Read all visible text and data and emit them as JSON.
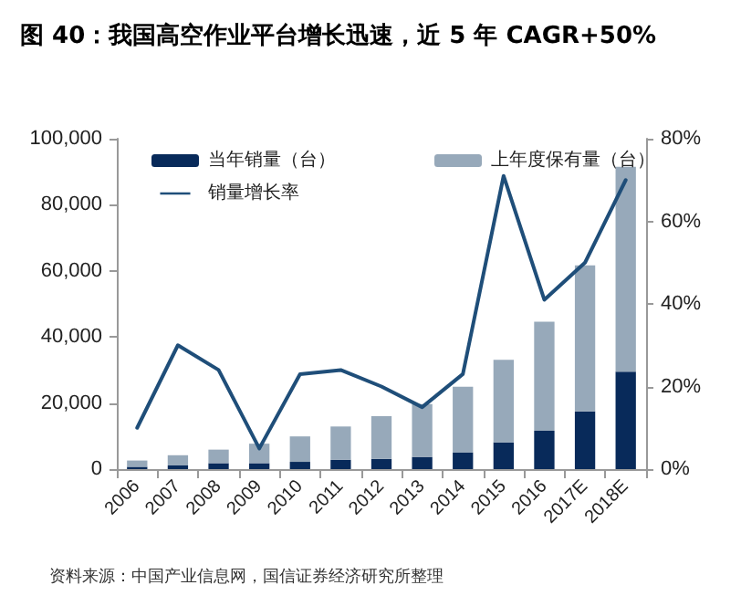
{
  "chart_data": {
    "type": "bar",
    "title": "图 40：我国高空作业平台增长迅速，近 5 年 CAGR+50%",
    "stacked": true,
    "categories": [
      "2006",
      "2007",
      "2008",
      "2009",
      "2010",
      "2011",
      "2012",
      "2013",
      "2014",
      "2015",
      "2016",
      "2017E",
      "2018E"
    ],
    "series": [
      {
        "name": "当年销量（台）",
        "color": "#082a5a",
        "values": [
          700,
          1100,
          1800,
          1800,
          2200,
          2800,
          3100,
          3700,
          5000,
          8100,
          11600,
          17500,
          29500
        ]
      },
      {
        "name": "上年度保有量（台）",
        "color": "#97a9ba",
        "values": [
          1900,
          3100,
          4100,
          5900,
          7700,
          10100,
          12900,
          16000,
          19900,
          25000,
          33000,
          44200,
          62000
        ]
      },
      {
        "name": "销量增长率",
        "type": "line",
        "axis": "y2",
        "color": "#1f4e79",
        "marker": "none",
        "values": [
          10,
          30,
          24,
          5,
          23,
          24,
          20,
          15,
          23,
          71,
          41,
          50,
          70
        ]
      }
    ],
    "ylim": [
      0,
      100000
    ],
    "yticks": [
      0,
      {
        "value": 20000,
        "label": "20,000"
      },
      {
        "value": 40000,
        "label": "40,000"
      },
      {
        "value": 60000,
        "label": "60,000"
      },
      {
        "value": 80000,
        "label": "80,000"
      },
      {
        "value": 100000,
        "label": "100,000"
      }
    ],
    "y2lim": [
      0,
      80
    ],
    "y2ticks": [
      {
        "value": 0,
        "label": "0%"
      },
      {
        "value": 20,
        "label": "20%"
      },
      {
        "value": 40,
        "label": "40%"
      },
      {
        "value": 60,
        "label": "60%"
      },
      {
        "value": 80,
        "label": "80%"
      }
    ],
    "grid": false,
    "legend": "top",
    "annotations": [
      "资料来源：中国产业信息网，国信证券经济研究所整理"
    ]
  }
}
